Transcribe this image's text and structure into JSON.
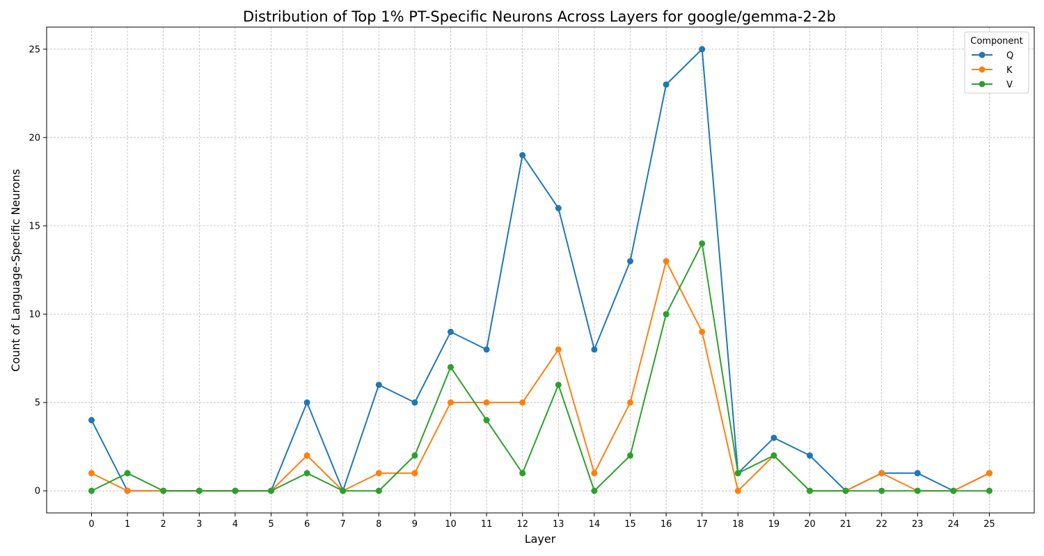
{
  "chart_data": {
    "type": "line",
    "title": "Distribution of Top 1% PT-Specific Neurons Across Layers for google/gemma-2-2b",
    "xlabel": "Layer",
    "ylabel": "Count of Language-Specific Neurons",
    "x": [
      0,
      1,
      2,
      3,
      4,
      5,
      6,
      7,
      8,
      9,
      10,
      11,
      12,
      13,
      14,
      15,
      16,
      17,
      18,
      19,
      20,
      21,
      22,
      23,
      24,
      25
    ],
    "xticks": [
      "0",
      "1",
      "2",
      "3",
      "4",
      "5",
      "6",
      "7",
      "8",
      "9",
      "10",
      "11",
      "12",
      "13",
      "14",
      "15",
      "16",
      "17",
      "18",
      "19",
      "20",
      "21",
      "22",
      "23",
      "24",
      "25"
    ],
    "yticks": [
      "0",
      "5",
      "10",
      "15",
      "20",
      "25"
    ],
    "ylim": [
      -1.25,
      26.25
    ],
    "xlim": [
      -1.25,
      26.25
    ],
    "grid": true,
    "legend": {
      "title": "Component",
      "position": "top-right"
    },
    "series": [
      {
        "name": "Q",
        "color": "#1f77b4",
        "values": [
          4,
          0,
          0,
          0,
          0,
          0,
          5,
          0,
          6,
          5,
          9,
          8,
          19,
          16,
          8,
          13,
          23,
          25,
          1,
          3,
          2,
          0,
          1,
          1,
          0,
          1
        ]
      },
      {
        "name": "K",
        "color": "#ff7f0e",
        "values": [
          1,
          0,
          0,
          0,
          0,
          0,
          2,
          0,
          1,
          1,
          5,
          5,
          5,
          8,
          1,
          5,
          13,
          9,
          0,
          2,
          0,
          0,
          1,
          0,
          0,
          1
        ]
      },
      {
        "name": "V",
        "color": "#2ca02c",
        "values": [
          0,
          1,
          0,
          0,
          0,
          0,
          1,
          0,
          0,
          2,
          7,
          4,
          1,
          6,
          0,
          2,
          10,
          14,
          1,
          2,
          0,
          0,
          0,
          0,
          0,
          0
        ]
      }
    ]
  }
}
